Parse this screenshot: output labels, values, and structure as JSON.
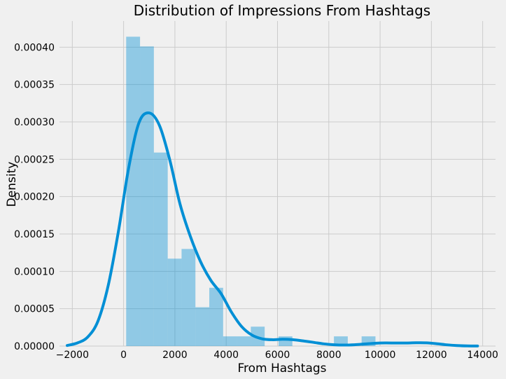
{
  "chart_data": {
    "type": "histogram",
    "title": "Distribution of Impressions From Hashtags",
    "xlabel": "From Hashtags",
    "ylabel": "Density",
    "xlim": [
      -2500,
      14500
    ],
    "ylim": [
      0,
      0.000435
    ],
    "grid": true,
    "style": "fivethirtyeight",
    "x_ticks": [
      -2000,
      0,
      2000,
      4000,
      6000,
      8000,
      10000,
      12000,
      14000
    ],
    "x_tick_labels": [
      "−2000",
      "0",
      "2000",
      "4000",
      "6000",
      "8000",
      "10000",
      "12000",
      "14000"
    ],
    "y_ticks": [
      0,
      5e-05,
      0.0001,
      0.00015,
      0.0002,
      0.00025,
      0.0003,
      0.00035,
      0.0004
    ],
    "y_tick_labels": [
      "0.00000",
      "0.00005",
      "0.00010",
      "0.00015",
      "0.00020",
      "0.00025",
      "0.00030",
      "0.00035",
      "0.00040"
    ],
    "bins": [
      {
        "start": 100,
        "end": 640,
        "density": 0.000414
      },
      {
        "start": 640,
        "end": 1180,
        "density": 0.000401
      },
      {
        "start": 1180,
        "end": 1720,
        "density": 0.000259
      },
      {
        "start": 1720,
        "end": 2260,
        "density": 0.000117
      },
      {
        "start": 2260,
        "end": 2800,
        "density": 0.00013
      },
      {
        "start": 2800,
        "end": 3340,
        "density": 5.2e-05
      },
      {
        "start": 3340,
        "end": 3880,
        "density": 7.8e-05
      },
      {
        "start": 3880,
        "end": 4420,
        "density": 1.3e-05
      },
      {
        "start": 4420,
        "end": 4960,
        "density": 1.3e-05
      },
      {
        "start": 4960,
        "end": 5500,
        "density": 2.6e-05
      },
      {
        "start": 5500,
        "end": 6040,
        "density": 0.0
      },
      {
        "start": 6040,
        "end": 6580,
        "density": 1.3e-05
      },
      {
        "start": 6580,
        "end": 7120,
        "density": 0.0
      },
      {
        "start": 7120,
        "end": 7660,
        "density": 0.0
      },
      {
        "start": 7660,
        "end": 8200,
        "density": 0.0
      },
      {
        "start": 8200,
        "end": 8740,
        "density": 1.3e-05
      },
      {
        "start": 8740,
        "end": 9280,
        "density": 0.0
      },
      {
        "start": 9280,
        "end": 9820,
        "density": 1.3e-05
      }
    ],
    "kde": {
      "x": [
        -2200,
        -1800,
        -1400,
        -1000,
        -600,
        -200,
        200,
        600,
        1000,
        1400,
        1800,
        2200,
        2600,
        3000,
        3400,
        3800,
        4200,
        4600,
        5000,
        5400,
        5800,
        6200,
        6600,
        7000,
        7400,
        7800,
        8200,
        8600,
        9000,
        9400,
        9800,
        10200,
        10600,
        11000,
        11400,
        11800,
        12200,
        12600,
        13000,
        13400,
        13800
      ],
      "y": [
        8e-07,
        4.2e-06,
        1.21e-05,
        3.34e-05,
        8.11e-05,
        0.000154,
        0.000239,
        0.000299,
        0.000312,
        0.000295,
        0.000249,
        0.00019,
        0.000147,
        0.000113,
        8.8e-05,
        7.02e-05,
        4.57e-05,
        2.62e-05,
        1.48e-05,
        9.7e-06,
        8.5e-06,
        9.1e-06,
        8.5e-06,
        6.9e-06,
        5e-06,
        3e-06,
        1.8e-06,
        1.4e-06,
        1.8e-06,
        2.8e-06,
        3.8e-06,
        4.2e-06,
        4.1e-06,
        4.1e-06,
        4.4e-06,
        4.3e-06,
        3.2e-06,
        1.7e-06,
        7e-07,
        2e-07,
        1e-07
      ]
    },
    "colors": {
      "background": "#f0f0f0",
      "grid": "#cbcbcb",
      "bar_fill": "#008fd5",
      "bar_opacity": 0.4,
      "kde_line": "#008fd5"
    }
  }
}
